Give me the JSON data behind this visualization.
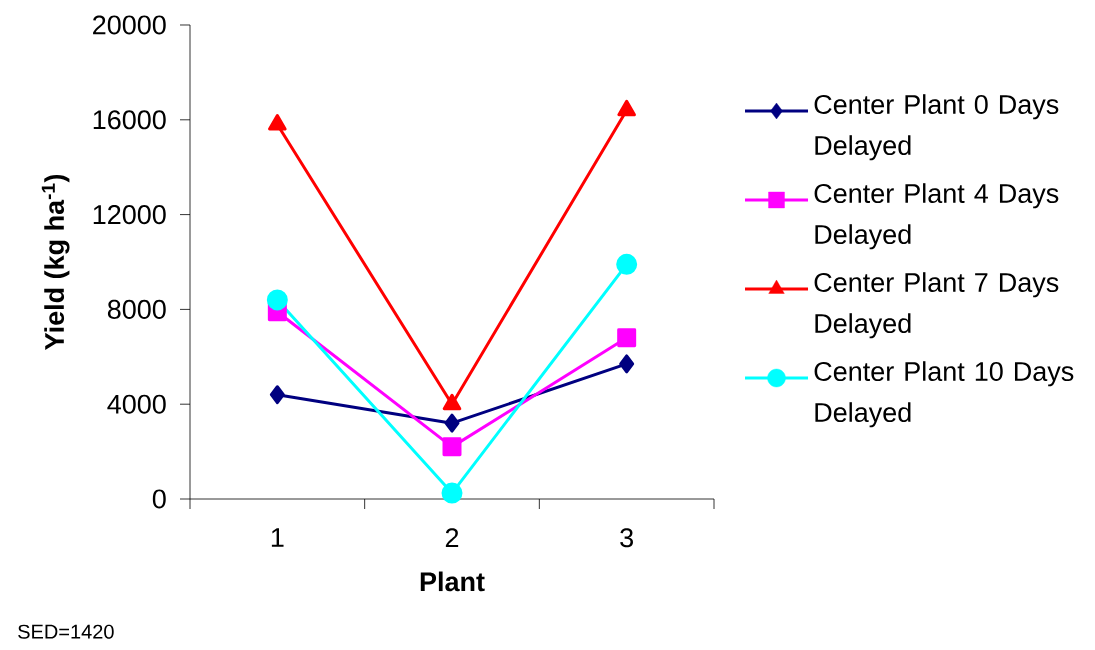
{
  "chart_data": {
    "type": "line",
    "xlabel": "Plant",
    "ylabel": "Yield (kg ha$^{-1}$)",
    "categories": [
      "1",
      "2",
      "3"
    ],
    "series": [
      {
        "name": "Center Plant 0 Days Delayed",
        "color": "#000080",
        "marker": "diamond",
        "values": [
          4400,
          3200,
          5700
        ]
      },
      {
        "name": "Center Plant 4 Days Delayed",
        "color": "#ff00ff",
        "marker": "square",
        "values": [
          7900,
          2200,
          6800
        ]
      },
      {
        "name": "Center Plant 7 Days Delayed",
        "color": "#ff0000",
        "marker": "triangle",
        "values": [
          15800,
          4000,
          16400
        ]
      },
      {
        "name": "Center Plant 10 Days Delayed",
        "color": "#00ffff",
        "marker": "circle",
        "values": [
          8400,
          250,
          9900
        ]
      }
    ],
    "ylim": [
      0,
      20000
    ],
    "yticks": [
      0,
      4000,
      8000,
      12000,
      16000,
      20000
    ],
    "grid": false,
    "legend": "right",
    "annotations": [
      "SED=1420"
    ]
  }
}
